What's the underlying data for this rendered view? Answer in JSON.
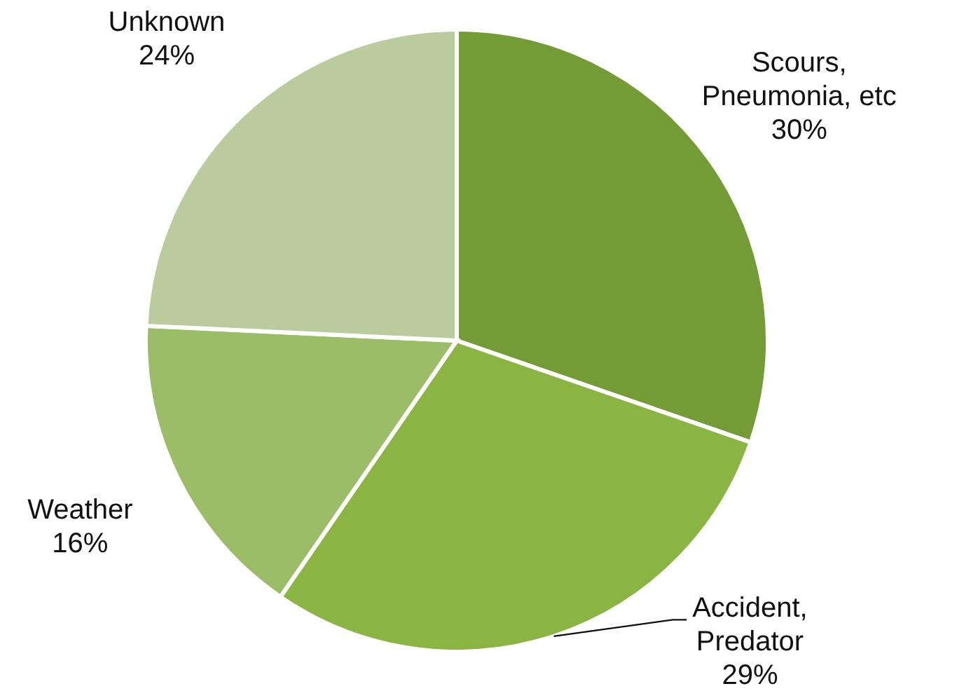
{
  "chart_data": {
    "type": "pie",
    "categories": [
      "Scours,\nPneumonia, etc",
      "Accident,\nPredator",
      "Weather",
      "Unknown"
    ],
    "values": [
      30,
      29,
      16,
      24
    ],
    "colors": [
      "#739b36",
      "#8bb542",
      "#9cbd68",
      "#bacb9e"
    ],
    "value_labels": [
      "30%",
      "29%",
      "16%",
      "24%"
    ]
  }
}
